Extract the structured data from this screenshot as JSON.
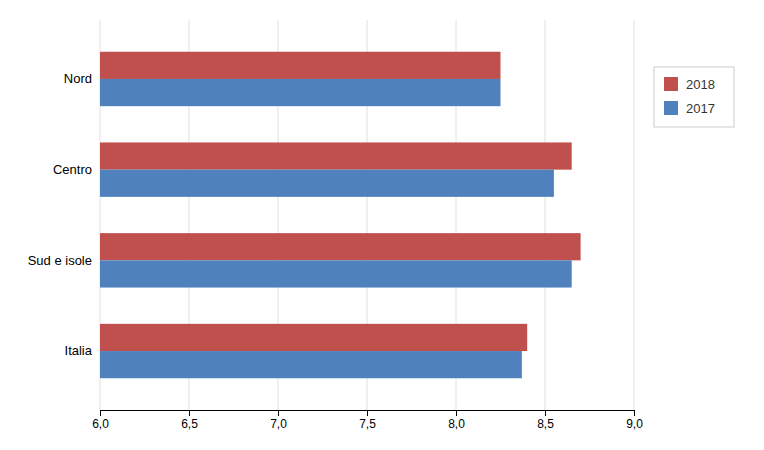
{
  "chart_data": {
    "type": "bar",
    "orientation": "horizontal",
    "categories": [
      "Italia",
      "Sud e isole",
      "Centro",
      "Nord"
    ],
    "series": [
      {
        "name": "2018",
        "color": "#c0504d",
        "values": [
          8.4,
          8.7,
          8.65,
          8.25
        ]
      },
      {
        "name": "2017",
        "color": "#4f81bd",
        "values": [
          8.37,
          8.65,
          8.55,
          8.25
        ]
      }
    ],
    "xlim": [
      6.0,
      9.0
    ],
    "xticks": [
      {
        "value": 6.0,
        "label": "6,0"
      },
      {
        "value": 6.5,
        "label": "6,5"
      },
      {
        "value": 7.0,
        "label": "7,0"
      },
      {
        "value": 7.5,
        "label": "7,5"
      },
      {
        "value": 8.0,
        "label": "8,0"
      },
      {
        "value": 8.5,
        "label": "8,5"
      },
      {
        "value": 9.0,
        "label": "9,0"
      }
    ],
    "grid": true,
    "legend": "right"
  }
}
